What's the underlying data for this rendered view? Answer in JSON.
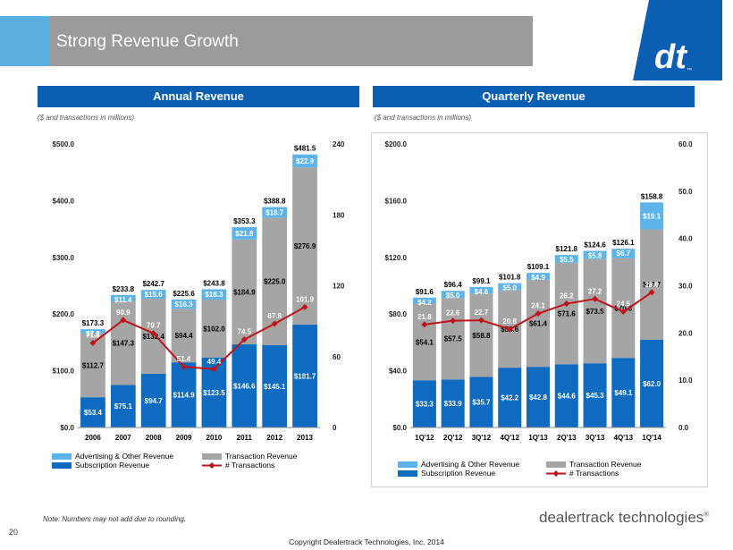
{
  "header": {
    "title": "Strong Revenue Growth",
    "logo_text": "dt",
    "logo_tm": "™"
  },
  "colors": {
    "advertising": "#5eb4e8",
    "transaction": "#a5a5a5",
    "subscription": "#0f6bbf",
    "transactions_line": "#c0141b",
    "accent": "#5aaee0",
    "header_bar": "#0b5fb3"
  },
  "chart_data": [
    {
      "id": "annual",
      "type": "bar",
      "stacked": true,
      "title": "Annual Revenue",
      "units_note": "($ and transactions in millions)",
      "categories": [
        "2006",
        "2007",
        "2008",
        "2009",
        "2010",
        "2011",
        "2012",
        "2013"
      ],
      "series": [
        {
          "name": "Subscription Revenue",
          "values": [
            53.4,
            75.1,
            94.7,
            114.9,
            123.5,
            146.6,
            145.1,
            181.7
          ],
          "labels": [
            "$53.4",
            "$75.1",
            "$94.7",
            "$114.9",
            "$123.5",
            "$146.6",
            "$145.1",
            "$181.7"
          ]
        },
        {
          "name": "Transaction Revenue",
          "values": [
            112.7,
            147.3,
            132.4,
            94.4,
            102.0,
            184.9,
            225.0,
            276.9
          ],
          "labels": [
            "$112.7",
            "$147.3",
            "$132.4",
            "$94.4",
            "$102.0",
            "$184.9",
            "$225.0",
            "$276.9"
          ]
        },
        {
          "name": "Advertising & Other Revenue",
          "values": [
            7.2,
            11.4,
            15.6,
            16.3,
            18.3,
            21.8,
            18.7,
            22.9
          ],
          "labels": [
            "$7.2",
            "$11.4",
            "$15.6",
            "$16.3",
            "$18.3",
            "$21.8",
            "$18.7",
            "$22.9"
          ]
        }
      ],
      "totals": [
        "$173.3",
        "$233.8",
        "$242.7",
        "$225.6",
        "$243.8",
        "$353.3",
        "$388.8",
        "$481.5"
      ],
      "line": {
        "name": "# Transactions",
        "values": [
          71.5,
          90.9,
          79.7,
          51.4,
          49.4,
          74.5,
          87.8,
          101.9
        ],
        "labels": [
          "71.5",
          "90.9",
          "79.7",
          "51.4",
          "49.4",
          "74.5",
          "87.8",
          "101.9"
        ]
      },
      "ylim": [
        0,
        500
      ],
      "y_ticks": [
        "$0.0",
        "$100.0",
        "$200.0",
        "$300.0",
        "$400.0",
        "$500.0"
      ],
      "y2lim": [
        0,
        240
      ],
      "y2_ticks": [
        "0",
        "60",
        "120",
        "180",
        "240"
      ],
      "legend": [
        "Advertising & Other Revenue",
        "Transaction Revenue",
        "Subscription Revenue",
        "# Transactions"
      ],
      "legend_position": "bottom"
    },
    {
      "id": "quarterly",
      "type": "bar",
      "stacked": true,
      "title": "Quarterly Revenue",
      "units_note": "($ and transactions in millions)",
      "categories": [
        "1Q'12",
        "2Q'12",
        "3Q'12",
        "4Q'12",
        "1Q'13",
        "2Q'13",
        "3Q'13",
        "4Q'13",
        "1Q'14"
      ],
      "series": [
        {
          "name": "Subscription Revenue",
          "values": [
            33.3,
            33.9,
            35.7,
            42.2,
            42.8,
            44.6,
            45.3,
            49.1,
            62.0
          ],
          "labels": [
            "$33.3",
            "$33.9",
            "$35.7",
            "$42.2",
            "$42.8",
            "$44.6",
            "$45.3",
            "$49.1",
            "$62.0"
          ]
        },
        {
          "name": "Transaction Revenue",
          "values": [
            54.1,
            57.5,
            58.8,
            54.6,
            61.4,
            71.6,
            73.5,
            70.3,
            77.7
          ],
          "labels": [
            "$54.1",
            "$57.5",
            "$58.8",
            "$54.6",
            "$61.4",
            "$71.6",
            "$73.5",
            "$70.3",
            "$77.7"
          ]
        },
        {
          "name": "Advertising & Other Revenue",
          "values": [
            4.2,
            5.0,
            4.6,
            5.0,
            4.9,
            5.5,
            5.8,
            6.7,
            19.1
          ],
          "labels": [
            "$4.2",
            "$5.0",
            "$4.6",
            "$5.0",
            "$4.9",
            "$5.5",
            "$5.8",
            "$6.7",
            "$19.1"
          ]
        }
      ],
      "totals": [
        "$91.6",
        "$96.4",
        "$99.1",
        "$101.8",
        "$109.1",
        "$121.8",
        "$124.6",
        "$126.1",
        "$158.8"
      ],
      "line": {
        "name": "# Transactions",
        "values": [
          21.8,
          22.6,
          22.7,
          20.8,
          24.1,
          26.2,
          27.2,
          24.5,
          28.6
        ],
        "labels": [
          "21.8",
          "22.6",
          "22.7",
          "20.8",
          "24.1",
          "26.2",
          "27.2",
          "24.5",
          "28.6"
        ]
      },
      "ylim": [
        0,
        200
      ],
      "y_ticks": [
        "$0.0",
        "$40.0",
        "$80.0",
        "$120.0",
        "$160.0",
        "$200.0"
      ],
      "y2lim": [
        0,
        60
      ],
      "y2_ticks": [
        "0.0",
        "10.0",
        "20.0",
        "30.0",
        "40.0",
        "50.0",
        "60.0"
      ],
      "legend": [
        "Advertising & Other Revenue",
        "Transaction Revenue",
        "Subscription Revenue",
        "# Transactions"
      ],
      "legend_position": "bottom"
    }
  ],
  "footer": {
    "page_number": "20",
    "note": "Note: Numbers may not add due to rounding.",
    "company": "dealertrack technologies",
    "company_mark": "®",
    "copyright": "Copyright Dealertrack Technologies, Inc. 2014"
  }
}
